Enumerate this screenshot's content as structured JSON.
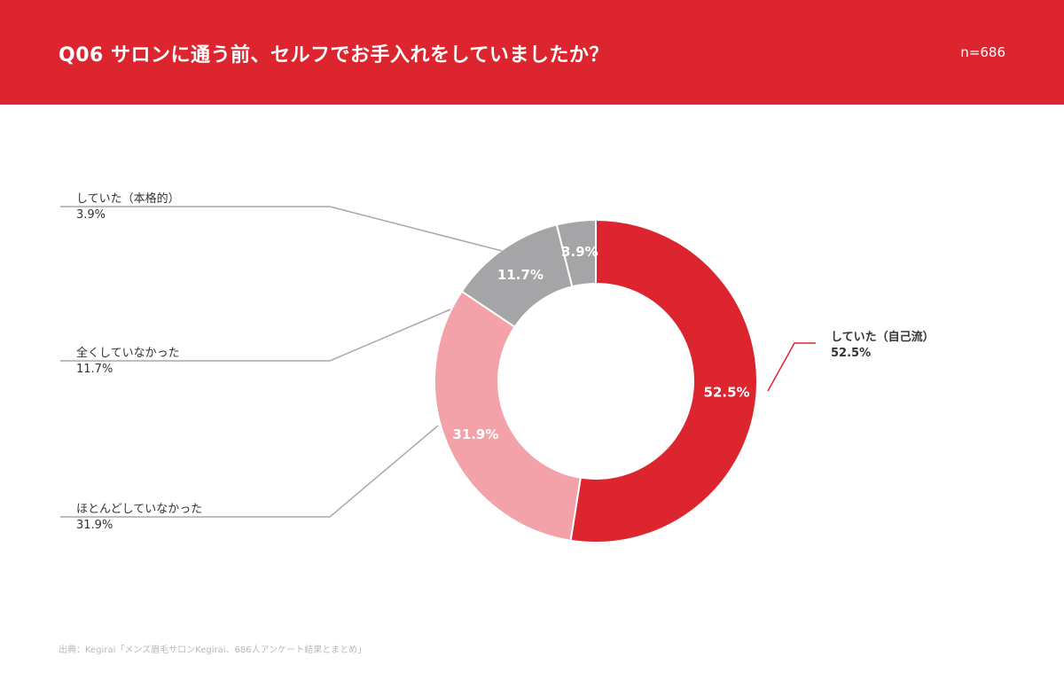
{
  "header": {
    "title": "Q06 サロンに通う前、セルフでお手入れをしていましたか？",
    "sample_size": "n=686",
    "background_color": "#dc252e"
  },
  "chart_data": {
    "type": "pie",
    "subtype": "donut",
    "slices": [
      {
        "label": "していた（自己流）",
        "value": 52.5,
        "value_label": "52.5%",
        "color": "#dc252e",
        "label_side": "right"
      },
      {
        "label": "ほとんどしていなかった",
        "value": 31.9,
        "value_label": "31.9%",
        "color": "#f4a2a9",
        "label_side": "left"
      },
      {
        "label": "全くしていなかった",
        "value": 11.7,
        "value_label": "11.7%",
        "color": "#a5a4a6",
        "label_side": "left"
      },
      {
        "label": "していた（本格的）",
        "value": 3.9,
        "value_label": "3.9%",
        "color": "#a5a4a6",
        "label_side": "left"
      }
    ],
    "start_angle": "12 o'clock",
    "direction": "clockwise"
  },
  "source": "出典：Kegirai「メンズ眉毛サロンKegirai、686人アンケート結果とまとめ」"
}
